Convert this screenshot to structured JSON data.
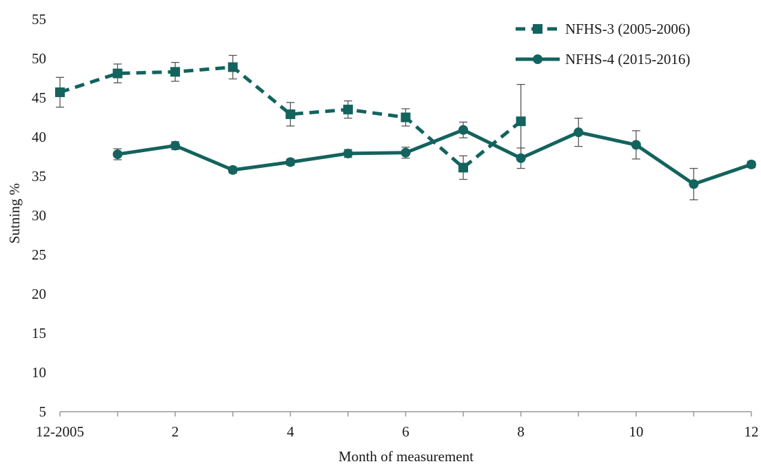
{
  "chart_data": {
    "type": "line",
    "xlabel": "Month of measurement",
    "ylabel": "Sutning %",
    "xlim": [
      0,
      12
    ],
    "ylim": [
      5,
      55
    ],
    "x_ticks": [
      {
        "x": 0,
        "label": "12-2005"
      },
      {
        "x": 2,
        "label": "2"
      },
      {
        "x": 4,
        "label": "4"
      },
      {
        "x": 6,
        "label": "6"
      },
      {
        "x": 8,
        "label": "8"
      },
      {
        "x": 10,
        "label": "10"
      },
      {
        "x": 12,
        "label": "12"
      }
    ],
    "y_ticks": [
      5,
      10,
      15,
      20,
      25,
      30,
      35,
      40,
      45,
      50,
      55
    ],
    "legend_position": "top-right",
    "series_color": "#13635E",
    "errorbar_color": "#555555",
    "series": [
      {
        "name": "NFHS-3 (2005-2006)",
        "line_style": "dashed",
        "marker": "square",
        "x": [
          0,
          1,
          2,
          3,
          4,
          5,
          6,
          7,
          8
        ],
        "y": [
          45.7,
          48.1,
          48.3,
          48.9,
          42.9,
          43.5,
          42.5,
          36.1,
          42.0
        ],
        "error": [
          1.9,
          1.2,
          1.2,
          1.5,
          1.5,
          1.1,
          1.1,
          1.5,
          4.7
        ]
      },
      {
        "name": "NFHS-4 (2015-2016)",
        "line_style": "solid",
        "marker": "circle",
        "x": [
          1,
          2,
          3,
          4,
          5,
          6,
          7,
          8,
          9,
          10,
          11,
          12
        ],
        "y": [
          37.8,
          38.9,
          35.8,
          36.8,
          37.9,
          38.0,
          40.9,
          37.3,
          40.6,
          39.0,
          34.0,
          36.5
        ],
        "error": [
          0.7,
          0.5,
          0.4,
          0.4,
          0.5,
          0.7,
          1.0,
          1.3,
          1.8,
          1.8,
          2.0,
          0.4
        ]
      }
    ]
  }
}
